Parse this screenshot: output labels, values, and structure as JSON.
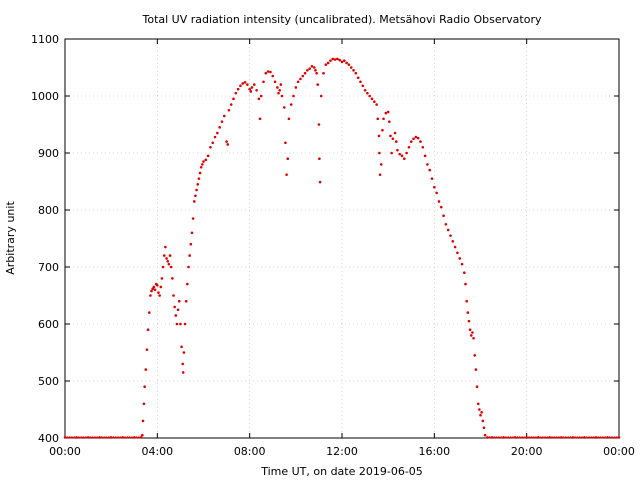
{
  "chart_data": {
    "type": "scatter",
    "title": "Total UV radiation intensity (uncalibrated). Metsähovi Radio Observatory",
    "xlabel": "Time UT, on date 2019-06-05",
    "ylabel": "Arbitrary unit",
    "xlim": [
      0,
      24
    ],
    "ylim": [
      400,
      1100
    ],
    "grid": true,
    "x_ticks": [
      {
        "value": 0,
        "label": "00:00"
      },
      {
        "value": 4,
        "label": "04:00"
      },
      {
        "value": 8,
        "label": "08:00"
      },
      {
        "value": 12,
        "label": "12:00"
      },
      {
        "value": 16,
        "label": "16:00"
      },
      {
        "value": 20,
        "label": "20:00"
      },
      {
        "value": 24,
        "label": "00:00"
      }
    ],
    "y_ticks": [
      {
        "value": 400,
        "label": "400"
      },
      {
        "value": 500,
        "label": "500"
      },
      {
        "value": 600,
        "label": "600"
      },
      {
        "value": 700,
        "label": "700"
      },
      {
        "value": 800,
        "label": "800"
      },
      {
        "value": 900,
        "label": "900"
      },
      {
        "value": 1000,
        "label": "1000"
      },
      {
        "value": 1100,
        "label": "1100"
      }
    ],
    "series": [
      {
        "color": "#e00000",
        "marker": "dot",
        "points": [
          [
            0.0,
            401
          ],
          [
            0.5,
            401
          ],
          [
            1.0,
            401
          ],
          [
            1.5,
            401
          ],
          [
            2.0,
            401
          ],
          [
            2.5,
            401
          ],
          [
            3.0,
            401
          ],
          [
            3.3,
            401
          ],
          [
            3.35,
            405
          ],
          [
            3.38,
            430
          ],
          [
            3.42,
            460
          ],
          [
            3.45,
            490
          ],
          [
            3.5,
            520
          ],
          [
            3.55,
            555
          ],
          [
            3.6,
            590
          ],
          [
            3.65,
            620
          ],
          [
            3.7,
            650
          ],
          [
            3.75,
            658
          ],
          [
            3.8,
            662
          ],
          [
            3.85,
            665
          ],
          [
            3.9,
            660
          ],
          [
            3.95,
            670
          ],
          [
            4.0,
            668
          ],
          [
            4.05,
            655
          ],
          [
            4.1,
            650
          ],
          [
            4.15,
            665
          ],
          [
            4.2,
            680
          ],
          [
            4.25,
            700
          ],
          [
            4.3,
            720
          ],
          [
            4.35,
            735
          ],
          [
            4.4,
            715
          ],
          [
            4.45,
            710
          ],
          [
            4.5,
            705
          ],
          [
            4.55,
            720
          ],
          [
            4.6,
            700
          ],
          [
            4.65,
            680
          ],
          [
            4.7,
            650
          ],
          [
            4.75,
            630
          ],
          [
            4.8,
            615
          ],
          [
            4.85,
            600
          ],
          [
            4.9,
            625
          ],
          [
            4.95,
            640
          ],
          [
            5.0,
            600
          ],
          [
            5.05,
            560
          ],
          [
            5.1,
            530
          ],
          [
            5.12,
            515
          ],
          [
            5.15,
            550
          ],
          [
            5.2,
            600
          ],
          [
            5.25,
            640
          ],
          [
            5.3,
            670
          ],
          [
            5.35,
            700
          ],
          [
            5.4,
            720
          ],
          [
            5.45,
            740
          ],
          [
            5.5,
            760
          ],
          [
            5.55,
            785
          ],
          [
            5.6,
            815
          ],
          [
            5.65,
            825
          ],
          [
            5.7,
            835
          ],
          [
            5.75,
            845
          ],
          [
            5.8,
            855
          ],
          [
            5.85,
            865
          ],
          [
            5.9,
            875
          ],
          [
            5.95,
            880
          ],
          [
            6.0,
            885
          ],
          [
            6.1,
            888
          ],
          [
            6.2,
            895
          ],
          [
            6.3,
            910
          ],
          [
            6.4,
            918
          ],
          [
            6.5,
            928
          ],
          [
            6.6,
            935
          ],
          [
            6.7,
            945
          ],
          [
            6.8,
            955
          ],
          [
            6.9,
            965
          ],
          [
            7.0,
            920
          ],
          [
            7.05,
            915
          ],
          [
            7.1,
            975
          ],
          [
            7.2,
            985
          ],
          [
            7.3,
            995
          ],
          [
            7.4,
            1005
          ],
          [
            7.5,
            1012
          ],
          [
            7.6,
            1018
          ],
          [
            7.7,
            1022
          ],
          [
            7.8,
            1024
          ],
          [
            7.9,
            1020
          ],
          [
            8.0,
            1012
          ],
          [
            8.05,
            1008
          ],
          [
            8.1,
            1015
          ],
          [
            8.2,
            1020
          ],
          [
            8.3,
            1010
          ],
          [
            8.4,
            995
          ],
          [
            8.45,
            960
          ],
          [
            8.5,
            1000
          ],
          [
            8.6,
            1025
          ],
          [
            8.7,
            1040
          ],
          [
            8.8,
            1043
          ],
          [
            8.9,
            1042
          ],
          [
            9.0,
            1035
          ],
          [
            9.1,
            1025
          ],
          [
            9.2,
            1015
          ],
          [
            9.25,
            1005
          ],
          [
            9.3,
            1010
          ],
          [
            9.35,
            1020
          ],
          [
            9.4,
            1000
          ],
          [
            9.5,
            980
          ],
          [
            9.55,
            918
          ],
          [
            9.6,
            862
          ],
          [
            9.65,
            890
          ],
          [
            9.7,
            960
          ],
          [
            9.8,
            985
          ],
          [
            9.9,
            1000
          ],
          [
            10.0,
            1015
          ],
          [
            10.1,
            1025
          ],
          [
            10.2,
            1030
          ],
          [
            10.3,
            1035
          ],
          [
            10.4,
            1040
          ],
          [
            10.5,
            1045
          ],
          [
            10.6,
            1048
          ],
          [
            10.7,
            1052
          ],
          [
            10.8,
            1050
          ],
          [
            10.85,
            1045
          ],
          [
            10.9,
            1040
          ],
          [
            10.95,
            1020
          ],
          [
            11.0,
            950
          ],
          [
            11.02,
            890
          ],
          [
            11.05,
            849
          ],
          [
            11.1,
            1000
          ],
          [
            11.2,
            1040
          ],
          [
            11.3,
            1055
          ],
          [
            11.4,
            1058
          ],
          [
            11.5,
            1062
          ],
          [
            11.6,
            1065
          ],
          [
            11.7,
            1064
          ],
          [
            11.8,
            1065
          ],
          [
            11.9,
            1063
          ],
          [
            12.0,
            1060
          ],
          [
            12.1,
            1062
          ],
          [
            12.2,
            1058
          ],
          [
            12.3,
            1055
          ],
          [
            12.4,
            1050
          ],
          [
            12.5,
            1045
          ],
          [
            12.6,
            1040
          ],
          [
            12.7,
            1032
          ],
          [
            12.8,
            1025
          ],
          [
            12.9,
            1018
          ],
          [
            13.0,
            1010
          ],
          [
            13.1,
            1005
          ],
          [
            13.2,
            1000
          ],
          [
            13.3,
            995
          ],
          [
            13.4,
            990
          ],
          [
            13.5,
            985
          ],
          [
            13.55,
            960
          ],
          [
            13.6,
            930
          ],
          [
            13.62,
            900
          ],
          [
            13.65,
            862
          ],
          [
            13.7,
            880
          ],
          [
            13.75,
            940
          ],
          [
            13.8,
            960
          ],
          [
            13.9,
            970
          ],
          [
            14.0,
            972
          ],
          [
            14.05,
            955
          ],
          [
            14.1,
            930
          ],
          [
            14.15,
            900
          ],
          [
            14.2,
            925
          ],
          [
            14.3,
            935
          ],
          [
            14.35,
            920
          ],
          [
            14.4,
            905
          ],
          [
            14.5,
            898
          ],
          [
            14.6,
            895
          ],
          [
            14.7,
            890
          ],
          [
            14.8,
            900
          ],
          [
            14.9,
            910
          ],
          [
            15.0,
            920
          ],
          [
            15.1,
            925
          ],
          [
            15.2,
            928
          ],
          [
            15.3,
            926
          ],
          [
            15.4,
            920
          ],
          [
            15.5,
            910
          ],
          [
            15.6,
            895
          ],
          [
            15.7,
            880
          ],
          [
            15.8,
            870
          ],
          [
            15.9,
            855
          ],
          [
            16.0,
            840
          ],
          [
            16.1,
            830
          ],
          [
            16.2,
            815
          ],
          [
            16.3,
            805
          ],
          [
            16.4,
            790
          ],
          [
            16.5,
            775
          ],
          [
            16.6,
            765
          ],
          [
            16.7,
            755
          ],
          [
            16.8,
            745
          ],
          [
            16.9,
            735
          ],
          [
            17.0,
            725
          ],
          [
            17.1,
            715
          ],
          [
            17.2,
            705
          ],
          [
            17.3,
            690
          ],
          [
            17.35,
            670
          ],
          [
            17.4,
            640
          ],
          [
            17.45,
            620
          ],
          [
            17.5,
            605
          ],
          [
            17.55,
            590
          ],
          [
            17.6,
            580
          ],
          [
            17.65,
            585
          ],
          [
            17.7,
            575
          ],
          [
            17.75,
            545
          ],
          [
            17.8,
            520
          ],
          [
            17.85,
            490
          ],
          [
            17.9,
            460
          ],
          [
            17.95,
            450
          ],
          [
            18.0,
            440
          ],
          [
            18.05,
            445
          ],
          [
            18.1,
            430
          ],
          [
            18.15,
            418
          ],
          [
            18.2,
            405
          ],
          [
            18.3,
            401
          ],
          [
            18.5,
            401
          ],
          [
            19.0,
            401
          ],
          [
            19.5,
            401
          ],
          [
            20.0,
            401
          ],
          [
            20.5,
            401
          ],
          [
            21.0,
            401
          ],
          [
            21.5,
            401
          ],
          [
            22.0,
            401
          ],
          [
            22.5,
            401
          ],
          [
            23.0,
            401
          ],
          [
            23.5,
            401
          ],
          [
            24.0,
            401
          ]
        ]
      }
    ]
  }
}
